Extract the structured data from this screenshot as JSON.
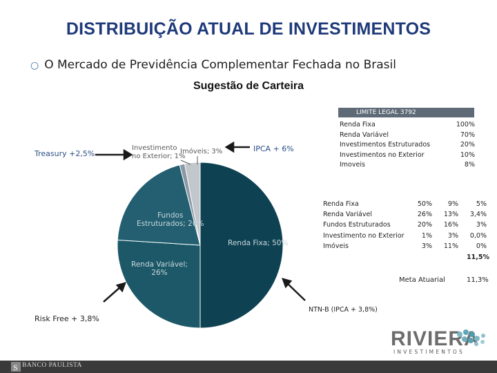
{
  "title": "DISTRIBUIÇÃO ATUAL DE INVESTIMENTOS",
  "subtitle": "O Mercado de Previdência Complementar Fechada no Brasil",
  "portfolio_title": "Sugestão de Carteira",
  "callouts": {
    "treasury": "Treasury +2,5%",
    "ipca": "IPCA + 6%",
    "risk_free": "Risk Free + 3,8%"
  },
  "pie": {
    "slices": [
      {
        "label": "Renda Fixa; 50%",
        "value": 50,
        "color": "#0e4252"
      },
      {
        "label": "Renda Variável; 26%",
        "value": 26,
        "color": "#1c5868"
      },
      {
        "label": "Fundos Estruturados; 20%",
        "value": 20,
        "color": "#235f71"
      },
      {
        "label": "Investimento no Exterior; 1%",
        "value": 1,
        "color": "#8a98a6"
      },
      {
        "label": "Imóveis; 3%",
        "value": 3,
        "color": "#c2c7cc"
      }
    ],
    "labels": {
      "renda_fixa": "Renda Fixa; 50%",
      "renda_variavel_1": "Renda Variável;",
      "renda_variavel_2": "26%",
      "fundos_1": "Fundos",
      "fundos_2": "Estruturados; 20%",
      "exterior_1": "Investimento",
      "exterior_2": "no Exterior; 1%",
      "imoveis": "Imóveis; 3%"
    }
  },
  "limits": {
    "header": "LIMITE LEGAL 3792",
    "rows": [
      {
        "name": "Renda Fixa",
        "value": "100%"
      },
      {
        "name": "Renda Variável",
        "value": "70%"
      },
      {
        "name": "Investimentos Estruturados",
        "value": "20%"
      },
      {
        "name": "Investimentos no Exterior",
        "value": "10%"
      },
      {
        "name": "Imoveis",
        "value": "8%"
      }
    ]
  },
  "allocation": {
    "rows": [
      {
        "name": "Renda Fixa",
        "c1": "50%",
        "c2": "9%",
        "c3": "5%"
      },
      {
        "name": "Renda Variável",
        "c1": "26%",
        "c2": "13%",
        "c3": "3,4%"
      },
      {
        "name": "Fundos Estruturados",
        "c1": "20%",
        "c2": "16%",
        "c3": "3%"
      },
      {
        "name": "Investimento no Exterior",
        "c1": "1%",
        "c2": "3%",
        "c3": "0,0%"
      },
      {
        "name": "Imóveis",
        "c1": "3%",
        "c2": "11%",
        "c3": "0%"
      }
    ],
    "total": "11,5%"
  },
  "meta": {
    "label": "Meta Atuarial",
    "value": "11,3%"
  },
  "ntnb": "NTN-B (IPCA + 3,8%)",
  "logo": {
    "name": "RIVIERA",
    "sub": "INVESTIMENTOS"
  },
  "footer": {
    "brand": "BANCO PAULISTA"
  }
}
